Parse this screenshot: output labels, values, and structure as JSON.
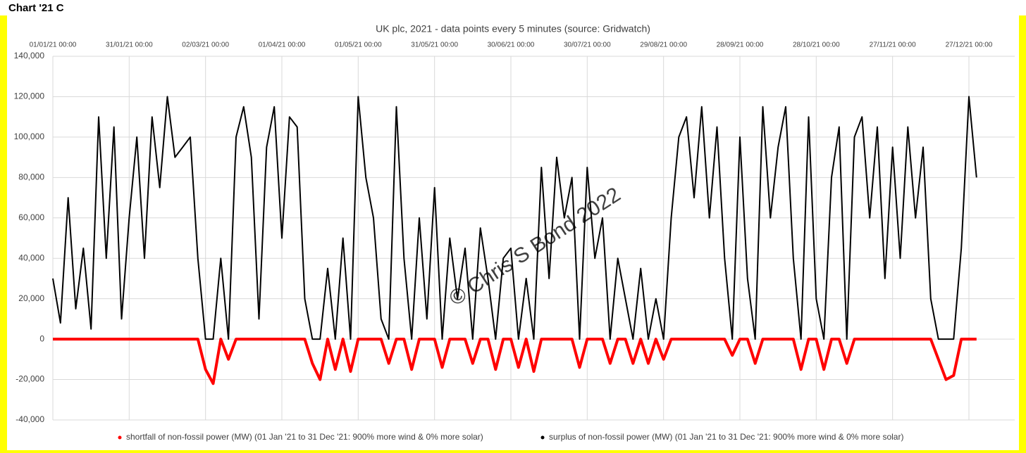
{
  "header": "Chart '21 C",
  "chart_data": {
    "type": "scatter",
    "title": "UK plc, 2021 - data points every 5 minutes (source: Gridwatch)",
    "watermark": "© Chris S Bond 2022",
    "x": [
      0,
      3,
      6,
      9,
      12,
      15,
      18,
      21,
      24,
      27,
      30,
      33,
      36,
      39,
      42,
      45,
      48,
      51,
      54,
      57,
      60,
      63,
      66,
      69,
      72,
      75,
      78,
      81,
      84,
      87,
      90,
      93,
      96,
      99,
      102,
      105,
      108,
      111,
      114,
      117,
      120,
      123,
      126,
      129,
      132,
      135,
      138,
      141,
      144,
      147,
      150,
      153,
      156,
      159,
      162,
      165,
      168,
      171,
      174,
      177,
      180,
      183,
      186,
      189,
      192,
      195,
      198,
      201,
      204,
      207,
      210,
      213,
      216,
      219,
      222,
      225,
      228,
      231,
      234,
      237,
      240,
      243,
      246,
      249,
      252,
      255,
      258,
      261,
      264,
      267,
      270,
      273,
      276,
      279,
      282,
      285,
      288,
      291,
      294,
      297,
      300,
      303,
      306,
      309,
      312,
      315,
      318,
      321,
      324,
      327,
      330,
      333,
      336,
      339,
      342,
      345,
      348,
      351,
      354,
      357,
      360,
      363
    ],
    "series": [
      {
        "name": "shortfall of non-fossil power (MW) (01 Jan '21 to 31 Dec '21: 900% more wind & 0% more solar)",
        "color": "#ff0000",
        "values": [
          0,
          0,
          0,
          0,
          0,
          0,
          0,
          0,
          0,
          0,
          0,
          0,
          0,
          0,
          0,
          0,
          0,
          0,
          0,
          0,
          -15000,
          -22000,
          0,
          -10000,
          0,
          0,
          0,
          0,
          0,
          0,
          0,
          0,
          0,
          0,
          -12000,
          -20000,
          0,
          -15000,
          0,
          -16000,
          0,
          0,
          0,
          0,
          -12000,
          0,
          0,
          -15000,
          0,
          0,
          0,
          -14000,
          0,
          0,
          0,
          -12000,
          0,
          0,
          -15000,
          0,
          0,
          -14000,
          0,
          -16000,
          0,
          0,
          0,
          0,
          0,
          -14000,
          0,
          0,
          0,
          -12000,
          0,
          0,
          -12000,
          0,
          -12000,
          0,
          -10000,
          0,
          0,
          0,
          0,
          0,
          0,
          0,
          0,
          -8000,
          0,
          0,
          -12000,
          0,
          0,
          0,
          0,
          0,
          -15000,
          0,
          0,
          -15000,
          0,
          0,
          -12000,
          0,
          0,
          0,
          0,
          0,
          0,
          0,
          0,
          0,
          0,
          0,
          -10000,
          -20000,
          -18000,
          0,
          0,
          0
        ]
      },
      {
        "name": "surplus of non-fossil power (MW) (01 Jan '21 to 31 Dec '21: 900% more wind & 0% more solar)",
        "color": "#000000",
        "values": [
          30000,
          8000,
          70000,
          15000,
          45000,
          5000,
          110000,
          40000,
          105000,
          10000,
          60000,
          100000,
          40000,
          110000,
          75000,
          120000,
          90000,
          95000,
          100000,
          40000,
          0,
          0,
          40000,
          0,
          100000,
          115000,
          90000,
          10000,
          95000,
          115000,
          50000,
          110000,
          105000,
          20000,
          0,
          0,
          35000,
          0,
          50000,
          0,
          120000,
          80000,
          60000,
          10000,
          0,
          115000,
          40000,
          0,
          60000,
          10000,
          75000,
          0,
          50000,
          20000,
          45000,
          0,
          55000,
          30000,
          0,
          40000,
          45000,
          0,
          30000,
          0,
          85000,
          30000,
          90000,
          60000,
          80000,
          0,
          85000,
          40000,
          60000,
          0,
          40000,
          20000,
          0,
          35000,
          0,
          20000,
          0,
          60000,
          100000,
          110000,
          70000,
          115000,
          60000,
          105000,
          40000,
          0,
          100000,
          30000,
          0,
          115000,
          60000,
          95000,
          115000,
          40000,
          0,
          110000,
          20000,
          0,
          80000,
          105000,
          0,
          100000,
          110000,
          60000,
          105000,
          30000,
          95000,
          40000,
          105000,
          60000,
          95000,
          20000,
          0,
          0,
          0,
          45000,
          120000,
          80000
        ]
      }
    ],
    "xlim": [
      0,
      378
    ],
    "xticks": [
      {
        "value": 0,
        "label": "01/01/21 00:00"
      },
      {
        "value": 30,
        "label": "31/01/21 00:00"
      },
      {
        "value": 60,
        "label": "02/03/21 00:00"
      },
      {
        "value": 90,
        "label": "01/04/21 00:00"
      },
      {
        "value": 120,
        "label": "01/05/21 00:00"
      },
      {
        "value": 150,
        "label": "31/05/21 00:00"
      },
      {
        "value": 180,
        "label": "30/06/21 00:00"
      },
      {
        "value": 210,
        "label": "30/07/21 00:00"
      },
      {
        "value": 240,
        "label": "29/08/21 00:00"
      },
      {
        "value": 270,
        "label": "28/09/21 00:00"
      },
      {
        "value": 300,
        "label": "28/10/21 00:00"
      },
      {
        "value": 330,
        "label": "27/11/21 00:00"
      },
      {
        "value": 360,
        "label": "27/12/21 00:00"
      }
    ],
    "ylim": [
      -40000,
      140000
    ],
    "yticks": [
      {
        "value": 140000,
        "label": "140,000"
      },
      {
        "value": 120000,
        "label": "120,000"
      },
      {
        "value": 100000,
        "label": "100,000"
      },
      {
        "value": 80000,
        "label": "80,000"
      },
      {
        "value": 60000,
        "label": "60,000"
      },
      {
        "value": 40000,
        "label": "40,000"
      },
      {
        "value": 20000,
        "label": "20,000"
      },
      0,
      {
        "value": -20000,
        "label": "-20,000"
      },
      {
        "value": -40000,
        "label": "-40,000"
      }
    ],
    "grid": true,
    "x_axis_position": "top",
    "legend": "bottom"
  }
}
